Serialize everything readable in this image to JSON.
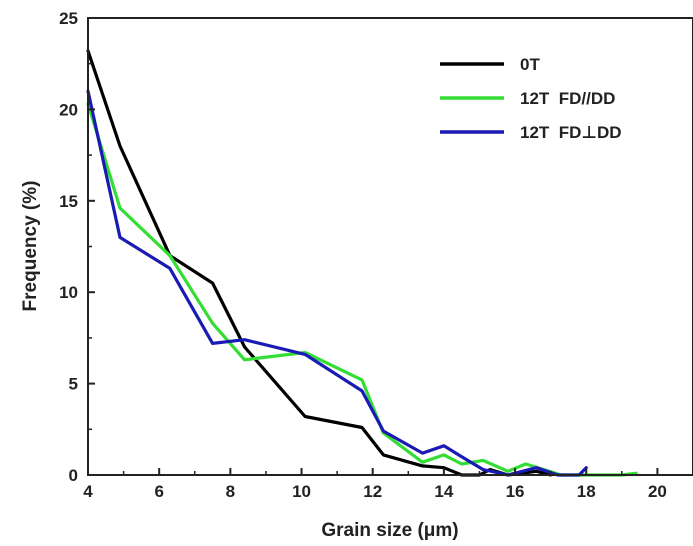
{
  "chart_data": {
    "type": "line",
    "title": "",
    "xlabel": "Grain size (μm)",
    "ylabel": "Frequency (%)",
    "xlim": [
      4,
      21
    ],
    "ylim": [
      0,
      25
    ],
    "xticks": [
      "4",
      "6",
      "8",
      "10",
      "12",
      "14",
      "16",
      "18",
      "20"
    ],
    "yticks": [
      "0",
      "5",
      "10",
      "15",
      "20",
      "25"
    ],
    "grid": false,
    "legend": {
      "position": "top-right"
    },
    "series": [
      {
        "name": "0T",
        "color": "#000000",
        "points": [
          [
            4.0,
            23.2
          ],
          [
            4.9,
            18.0
          ],
          [
            6.3,
            12.0
          ],
          [
            7.5,
            10.5
          ],
          [
            8.4,
            7.0
          ],
          [
            10.1,
            3.2
          ],
          [
            11.7,
            2.6
          ],
          [
            12.3,
            1.1
          ],
          [
            13.4,
            0.5
          ],
          [
            14.0,
            0.4
          ],
          [
            14.5,
            0.0
          ],
          [
            15.0,
            0.0
          ],
          [
            15.3,
            0.3
          ],
          [
            15.8,
            0.0
          ],
          [
            16.6,
            0.2
          ],
          [
            17.0,
            0.0
          ]
        ]
      },
      {
        "name": "12T  FD//DD",
        "color": "#33dd33",
        "points": [
          [
            4.0,
            20.3
          ],
          [
            4.9,
            14.6
          ],
          [
            6.3,
            12.0
          ],
          [
            7.5,
            8.3
          ],
          [
            8.4,
            6.3
          ],
          [
            10.1,
            6.7
          ],
          [
            11.7,
            5.2
          ],
          [
            12.3,
            2.3
          ],
          [
            13.4,
            0.7
          ],
          [
            14.0,
            1.1
          ],
          [
            14.5,
            0.6
          ],
          [
            15.1,
            0.8
          ],
          [
            15.8,
            0.2
          ],
          [
            16.3,
            0.6
          ],
          [
            16.8,
            0.3
          ],
          [
            17.3,
            0.0
          ],
          [
            19.0,
            0.0
          ],
          [
            19.4,
            0.1
          ]
        ]
      },
      {
        "name": "12T  FD⊥DD",
        "color": "#1a1ab4",
        "points": [
          [
            4.0,
            21.0
          ],
          [
            4.9,
            13.0
          ],
          [
            6.3,
            11.3
          ],
          [
            7.5,
            7.2
          ],
          [
            8.4,
            7.4
          ],
          [
            10.1,
            6.6
          ],
          [
            11.7,
            4.6
          ],
          [
            12.3,
            2.4
          ],
          [
            13.4,
            1.2
          ],
          [
            14.0,
            1.6
          ],
          [
            14.5,
            1.0
          ],
          [
            15.1,
            0.3
          ],
          [
            15.8,
            0.0
          ],
          [
            16.6,
            0.4
          ],
          [
            17.2,
            0.0
          ],
          [
            17.8,
            0.0
          ],
          [
            18.0,
            0.4
          ]
        ]
      }
    ]
  }
}
